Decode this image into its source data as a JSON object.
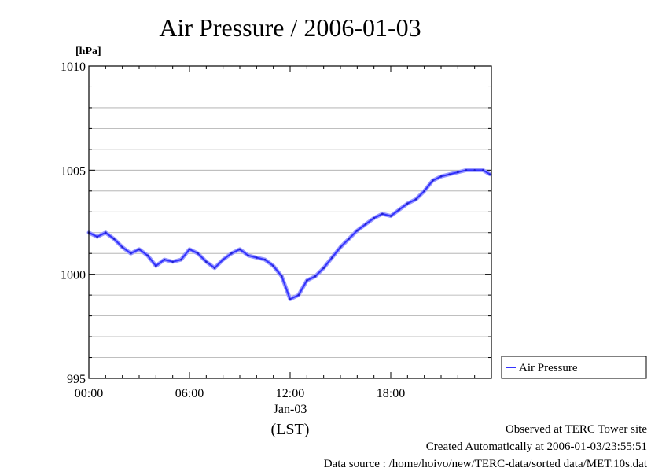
{
  "chart_data": {
    "type": "line",
    "title": "Air Pressure / 2006-01-03",
    "ylabel": "[hPa]",
    "xlabel": "(LST)",
    "x_date_label": "Jan-03",
    "xlim": [
      "00:00",
      "24:00"
    ],
    "ylim": [
      995,
      1010
    ],
    "y_ticks": [
      "995",
      "1000",
      "1005",
      "1010"
    ],
    "x_ticks": [
      "00:00",
      "06:00",
      "12:00",
      "18:00"
    ],
    "grid": true,
    "legend_position": "right-bottom",
    "series": [
      {
        "name": "Air Pressure",
        "color": "#3333ff",
        "x": [
          "00:00",
          "00:30",
          "01:00",
          "01:30",
          "02:00",
          "02:30",
          "03:00",
          "03:30",
          "04:00",
          "04:30",
          "05:00",
          "05:30",
          "06:00",
          "06:30",
          "07:00",
          "07:30",
          "08:00",
          "08:30",
          "09:00",
          "09:30",
          "10:00",
          "10:30",
          "11:00",
          "11:30",
          "12:00",
          "12:30",
          "13:00",
          "13:30",
          "14:00",
          "14:30",
          "15:00",
          "15:30",
          "16:00",
          "16:30",
          "17:00",
          "17:30",
          "18:00",
          "18:30",
          "19:00",
          "19:30",
          "20:00",
          "20:30",
          "21:00",
          "21:30",
          "22:00",
          "22:30",
          "23:00",
          "23:30",
          "23:55"
        ],
        "values": [
          1002.0,
          1001.8,
          1002.0,
          1001.7,
          1001.3,
          1001.0,
          1001.2,
          1000.9,
          1000.4,
          1000.7,
          1000.6,
          1000.7,
          1001.2,
          1001.0,
          1000.6,
          1000.3,
          1000.7,
          1001.0,
          1001.2,
          1000.9,
          1000.8,
          1000.7,
          1000.4,
          999.9,
          998.8,
          999.0,
          999.7,
          999.9,
          1000.3,
          1000.8,
          1001.3,
          1001.7,
          1002.1,
          1002.4,
          1002.7,
          1002.9,
          1002.8,
          1003.1,
          1003.4,
          1003.6,
          1004.0,
          1004.5,
          1004.7,
          1004.8,
          1004.9,
          1005.0,
          1005.0,
          1005.0,
          1004.8
        ]
      }
    ]
  },
  "footer": {
    "site": "Observed at TERC Tower site",
    "created": "Created Automatically at 2006-01-03/23:55:51",
    "source": "Data source : /home/hoivo/new/TERC-data/sorted  data/MET.10s.dat"
  }
}
